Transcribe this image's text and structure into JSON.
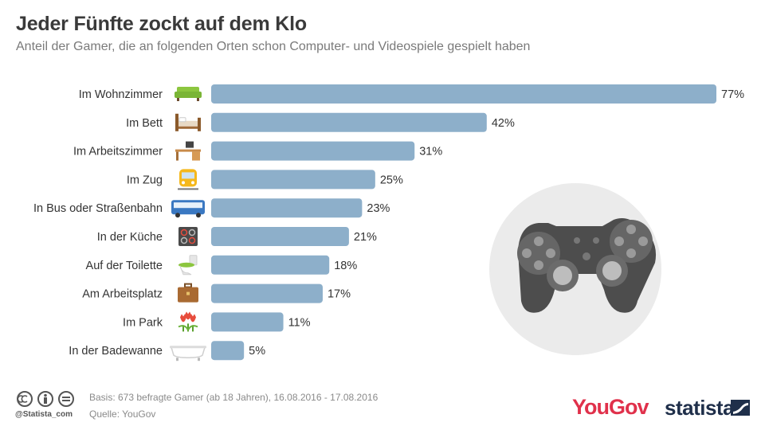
{
  "title": "Jeder Fünfte zockt auf dem Klo",
  "subtitle": "Anteil der Gamer, die an folgenden Orten schon Computer- und Videospiele gespielt haben",
  "chart_data": {
    "type": "bar",
    "orientation": "horizontal",
    "categories": [
      "Im Wohnzimmer",
      "Im Bett",
      "Im Arbeitszimmer",
      "Im Zug",
      "In Bus oder Straßenbahn",
      "In der Küche",
      "Auf der Toilette",
      "Am Arbeitsplatz",
      "Im Park",
      "In der Badewanne"
    ],
    "values": [
      77,
      42,
      31,
      25,
      23,
      21,
      18,
      17,
      11,
      5
    ],
    "value_suffix": "%",
    "icons": [
      "sofa-icon",
      "bed-icon",
      "desk-icon",
      "train-icon",
      "bus-icon",
      "stove-icon",
      "toilet-icon",
      "briefcase-icon",
      "tulips-icon",
      "bathtub-icon"
    ],
    "bar_color": "#8dafca",
    "grid": false,
    "legend": "none"
  },
  "footer": {
    "basis": "Basis: 673 befragte Gamer (ab 18 Jahren), 16.08.2016 - 17.08.2016",
    "source": "Quelle: YouGov",
    "handle": "@Statista_com"
  },
  "brands": {
    "yougov": "YouGov",
    "statista": "statista"
  },
  "colors": {
    "yougov": "#e0314b",
    "statista": "#1f2f4a",
    "controller_bg": "#ebebeb",
    "controller": "#4d4d4d"
  }
}
